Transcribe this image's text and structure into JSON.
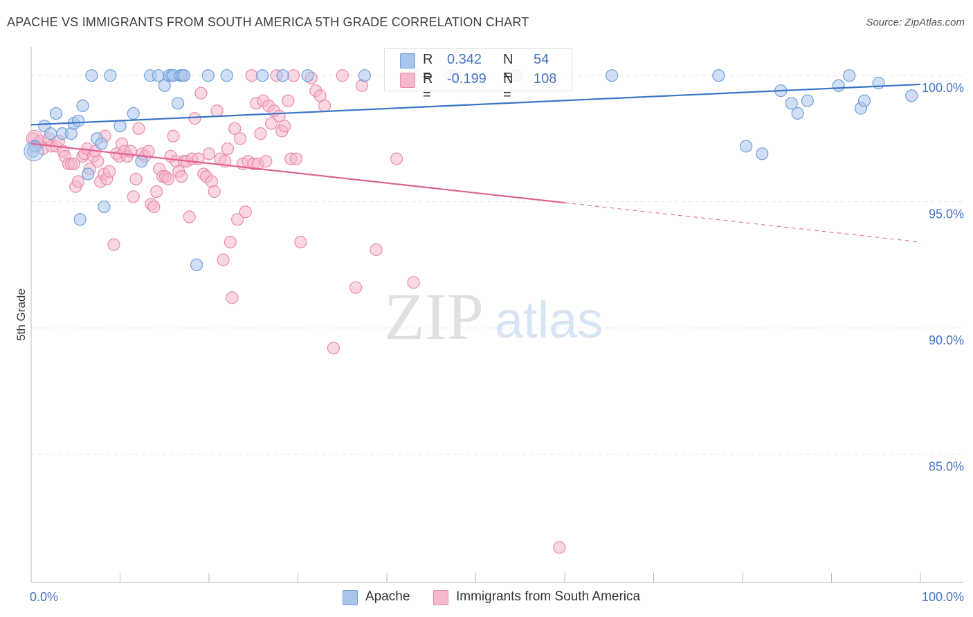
{
  "title": "APACHE VS IMMIGRANTS FROM SOUTH AMERICA 5TH GRADE CORRELATION CHART",
  "source": "Source: ZipAtlas.com",
  "watermark": {
    "zip": "ZIP",
    "atlas": "atlas"
  },
  "colors": {
    "blue_fill": "#a9c5ec",
    "blue_stroke": "#6f9fd8",
    "blue_line": "#3874c8",
    "pink_fill": "#f6b8cb",
    "pink_stroke": "#e98bab",
    "pink_line": "#e0628f",
    "tick_text": "#4472c4",
    "grid": "#e3e3e3"
  },
  "legend": {
    "rows": [
      {
        "r_label": "R =",
        "r_value": "0.342",
        "n_label": "N =",
        "n_value": "54",
        "color": "blue"
      },
      {
        "r_label": "R =",
        "r_value": "-0.199",
        "n_label": "N =",
        "n_value": "108",
        "color": "pink"
      }
    ]
  },
  "bottom_legend": [
    {
      "label": "Apache",
      "color": "blue"
    },
    {
      "label": "Immigrants from South America",
      "color": "pink"
    }
  ],
  "chart_data": {
    "type": "scatter",
    "title": "APACHE VS IMMIGRANTS FROM SOUTH AMERICA 5TH GRADE CORRELATION CHART",
    "xlabel": "",
    "ylabel": "5th Grade",
    "xlim": [
      0,
      100
    ],
    "ylim": [
      80.3,
      100.8
    ],
    "x_tick_labels": [
      {
        "value": 0,
        "label": "0.0%"
      },
      {
        "value": 100,
        "label": "100.0%"
      }
    ],
    "x_minor_ticks": [
      10,
      20,
      30,
      40,
      50,
      60,
      70,
      80,
      90
    ],
    "y_ticks": [
      {
        "value": 100,
        "label": "100.0%"
      },
      {
        "value": 95,
        "label": "95.0%"
      },
      {
        "value": 90,
        "label": "90.0%"
      },
      {
        "value": 85,
        "label": "85.0%"
      }
    ],
    "grid": true,
    "legend_position": "top-center",
    "series": [
      {
        "name": "Apache",
        "color": "blue",
        "trend": {
          "x0": 0,
          "y0": 98.05,
          "x1": 100,
          "y1": 99.65,
          "dashed_from": null
        },
        "points": [
          [
            0.2,
            97.0
          ],
          [
            0.4,
            97.2
          ],
          [
            1.5,
            98.0
          ],
          [
            2.2,
            97.7
          ],
          [
            2.8,
            98.5
          ],
          [
            3.5,
            97.7
          ],
          [
            4.5,
            97.7
          ],
          [
            4.8,
            98.1
          ],
          [
            5.3,
            98.2
          ],
          [
            5.8,
            98.8
          ],
          [
            5.5,
            94.3
          ],
          [
            6.4,
            96.1
          ],
          [
            6.8,
            100.0
          ],
          [
            7.4,
            97.5
          ],
          [
            7.9,
            97.3
          ],
          [
            8.2,
            94.8
          ],
          [
            8.9,
            100.0
          ],
          [
            10.0,
            98.0
          ],
          [
            11.5,
            98.5
          ],
          [
            12.4,
            96.6
          ],
          [
            13.4,
            100.0
          ],
          [
            14.3,
            100.0
          ],
          [
            15.0,
            99.6
          ],
          [
            15.5,
            100.0
          ],
          [
            15.8,
            100.0
          ],
          [
            16.0,
            100.0
          ],
          [
            16.5,
            98.9
          ],
          [
            16.8,
            100.0
          ],
          [
            17.0,
            100.0
          ],
          [
            17.2,
            100.0
          ],
          [
            18.6,
            92.5
          ],
          [
            19.9,
            100.0
          ],
          [
            22.0,
            100.0
          ],
          [
            26.0,
            100.0
          ],
          [
            28.3,
            100.0
          ],
          [
            31.1,
            100.0
          ],
          [
            37.5,
            100.0
          ],
          [
            43.0,
            100.0
          ],
          [
            47.3,
            100.0
          ],
          [
            54.5,
            100.0
          ],
          [
            65.3,
            100.0
          ],
          [
            77.3,
            100.0
          ],
          [
            80.4,
            97.2
          ],
          [
            82.2,
            96.9
          ],
          [
            84.3,
            99.4
          ],
          [
            85.5,
            98.9
          ],
          [
            86.2,
            98.5
          ],
          [
            87.3,
            99.0
          ],
          [
            90.8,
            99.6
          ],
          [
            92.0,
            100.0
          ],
          [
            93.3,
            98.7
          ],
          [
            93.7,
            99.0
          ],
          [
            95.3,
            99.7
          ],
          [
            99.0,
            99.2
          ]
        ]
      },
      {
        "name": "Immigrants from South America",
        "color": "pink",
        "trend": {
          "x0": 0,
          "y0": 97.3,
          "x1": 100,
          "y1": 93.4,
          "dashed_from": 60
        },
        "points": [
          [
            0.3,
            97.5
          ],
          [
            0.8,
            97.3
          ],
          [
            1.0,
            97.4
          ],
          [
            1.3,
            97.1
          ],
          [
            2.0,
            97.5
          ],
          [
            2.3,
            97.2
          ],
          [
            2.8,
            97.2
          ],
          [
            3.1,
            97.4
          ],
          [
            3.6,
            97.0
          ],
          [
            3.8,
            96.8
          ],
          [
            4.2,
            96.5
          ],
          [
            4.5,
            96.5
          ],
          [
            4.8,
            96.5
          ],
          [
            5.0,
            95.6
          ],
          [
            5.3,
            95.8
          ],
          [
            5.8,
            96.8
          ],
          [
            6.0,
            96.9
          ],
          [
            6.3,
            97.1
          ],
          [
            6.6,
            96.3
          ],
          [
            7.0,
            96.8
          ],
          [
            7.2,
            97.0
          ],
          [
            7.5,
            96.6
          ],
          [
            7.8,
            95.8
          ],
          [
            8.2,
            96.1
          ],
          [
            8.5,
            95.9
          ],
          [
            8.8,
            96.2
          ],
          [
            8.3,
            97.6
          ],
          [
            9.3,
            93.3
          ],
          [
            9.6,
            96.9
          ],
          [
            9.9,
            96.8
          ],
          [
            10.2,
            97.3
          ],
          [
            10.5,
            97.0
          ],
          [
            10.8,
            96.8
          ],
          [
            11.2,
            97.0
          ],
          [
            11.5,
            95.2
          ],
          [
            11.8,
            95.9
          ],
          [
            12.1,
            97.9
          ],
          [
            12.5,
            96.9
          ],
          [
            12.8,
            96.8
          ],
          [
            13.2,
            97.0
          ],
          [
            13.5,
            94.9
          ],
          [
            13.8,
            94.8
          ],
          [
            14.1,
            95.4
          ],
          [
            14.4,
            96.3
          ],
          [
            14.8,
            96.0
          ],
          [
            15.1,
            96.0
          ],
          [
            15.4,
            95.9
          ],
          [
            15.7,
            96.8
          ],
          [
            16.0,
            97.6
          ],
          [
            16.3,
            96.6
          ],
          [
            16.6,
            96.2
          ],
          [
            16.9,
            96.0
          ],
          [
            17.2,
            96.6
          ],
          [
            17.5,
            96.6
          ],
          [
            17.8,
            94.4
          ],
          [
            18.1,
            96.7
          ],
          [
            18.4,
            98.3
          ],
          [
            18.8,
            96.7
          ],
          [
            19.1,
            99.3
          ],
          [
            19.4,
            96.1
          ],
          [
            19.7,
            96.0
          ],
          [
            20.0,
            96.9
          ],
          [
            20.3,
            95.8
          ],
          [
            20.6,
            95.4
          ],
          [
            20.9,
            98.6
          ],
          [
            21.3,
            96.7
          ],
          [
            21.6,
            92.7
          ],
          [
            21.8,
            96.6
          ],
          [
            22.1,
            97.1
          ],
          [
            22.4,
            93.4
          ],
          [
            22.6,
            91.2
          ],
          [
            22.9,
            97.9
          ],
          [
            23.2,
            94.3
          ],
          [
            23.5,
            97.5
          ],
          [
            23.8,
            96.5
          ],
          [
            24.1,
            94.6
          ],
          [
            24.4,
            96.6
          ],
          [
            24.8,
            100.0
          ],
          [
            25.0,
            96.5
          ],
          [
            25.3,
            98.9
          ],
          [
            25.5,
            96.5
          ],
          [
            25.8,
            97.7
          ],
          [
            26.1,
            99.0
          ],
          [
            26.4,
            96.6
          ],
          [
            26.7,
            98.8
          ],
          [
            27.0,
            98.1
          ],
          [
            27.3,
            98.6
          ],
          [
            27.6,
            100.0
          ],
          [
            27.9,
            98.4
          ],
          [
            28.2,
            97.8
          ],
          [
            28.5,
            98.0
          ],
          [
            28.9,
            99.0
          ],
          [
            29.2,
            96.7
          ],
          [
            29.5,
            100.0
          ],
          [
            29.8,
            96.7
          ],
          [
            30.3,
            93.4
          ],
          [
            31.5,
            99.9
          ],
          [
            32.0,
            99.4
          ],
          [
            32.5,
            99.2
          ],
          [
            33.0,
            98.8
          ],
          [
            34.0,
            89.2
          ],
          [
            35.0,
            100.0
          ],
          [
            36.5,
            91.6
          ],
          [
            37.2,
            99.6
          ],
          [
            38.8,
            93.1
          ],
          [
            41.1,
            96.7
          ],
          [
            43.0,
            91.8
          ],
          [
            59.4,
            81.3
          ]
        ]
      }
    ]
  }
}
